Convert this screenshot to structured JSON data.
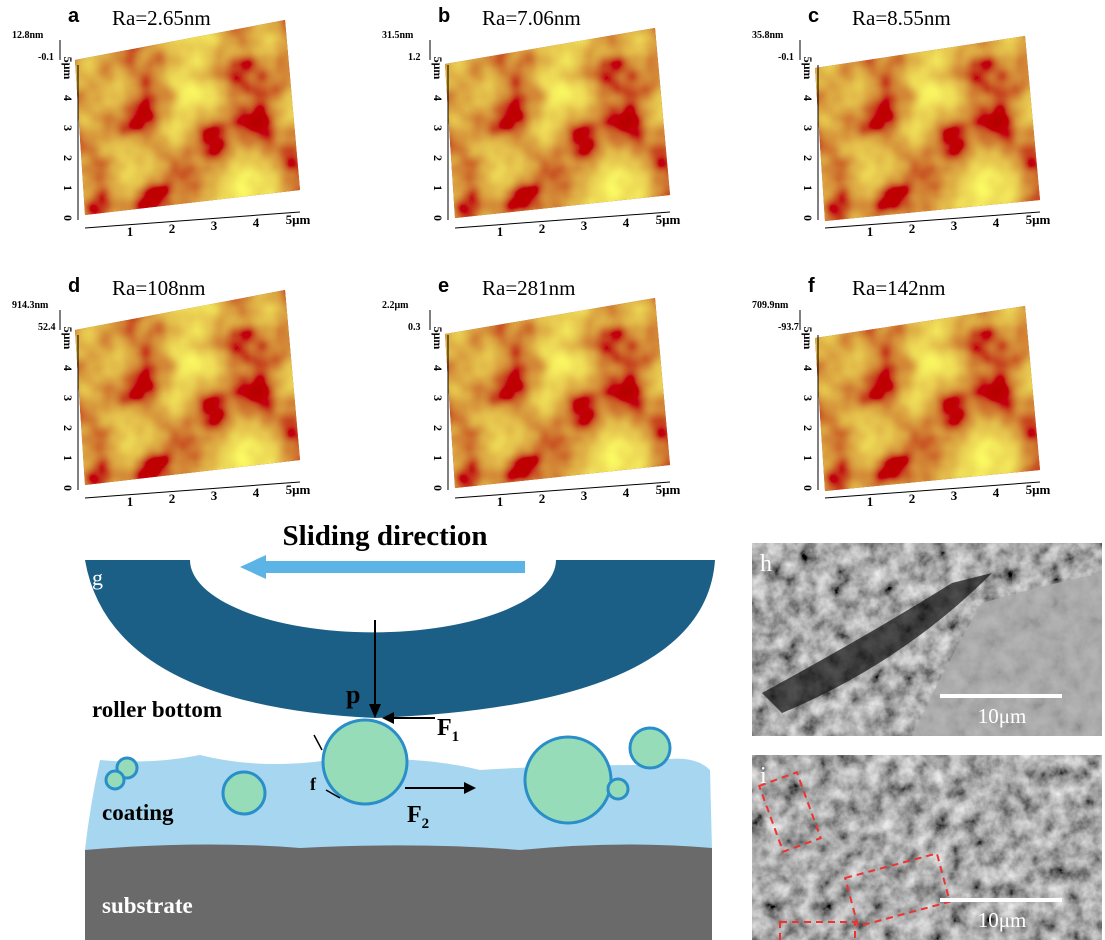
{
  "afm_panels": [
    {
      "letter": "a",
      "roughness": "Ra=2.65nm",
      "z_max": "12.8nm",
      "z_min": "-0.1",
      "x_ticks": [
        "1",
        "2",
        "3",
        "4",
        "5μm"
      ],
      "y_ticks": [
        "0",
        "1",
        "2",
        "3",
        "4",
        "5μm"
      ]
    },
    {
      "letter": "b",
      "roughness": "Ra=7.06nm",
      "z_max": "31.5nm",
      "z_min": "1.2",
      "x_ticks": [
        "1",
        "2",
        "3",
        "4",
        "5μm"
      ],
      "y_ticks": [
        "0",
        "1",
        "2",
        "3",
        "4",
        "5μm"
      ]
    },
    {
      "letter": "c",
      "roughness": "Ra=8.55nm",
      "z_max": "35.8nm",
      "z_min": "-0.1",
      "x_ticks": [
        "1",
        "2",
        "3",
        "4",
        "5μm"
      ],
      "y_ticks": [
        "0",
        "1",
        "2",
        "3",
        "4",
        "5μm"
      ]
    },
    {
      "letter": "d",
      "roughness": "Ra=108nm",
      "z_max": "914.3nm",
      "z_min": "52.4",
      "x_ticks": [
        "1",
        "2",
        "3",
        "4",
        "5μm"
      ],
      "y_ticks": [
        "0",
        "1",
        "2",
        "3",
        "4",
        "5μm"
      ]
    },
    {
      "letter": "e",
      "roughness": "Ra=281nm",
      "z_max": "2.2μm",
      "z_min": "0.3",
      "x_ticks": [
        "1",
        "2",
        "3",
        "4",
        "5μm"
      ],
      "y_ticks": [
        "0",
        "1",
        "2",
        "3",
        "4",
        "5μm"
      ]
    },
    {
      "letter": "f",
      "roughness": "Ra=142nm",
      "z_max": "709.9nm",
      "z_min": "-93.7",
      "x_ticks": [
        "1",
        "2",
        "3",
        "4",
        "5μm"
      ],
      "y_ticks": [
        "0",
        "1",
        "2",
        "3",
        "4",
        "5μm"
      ]
    }
  ],
  "schematic": {
    "letter": "g",
    "sliding_direction": "Sliding direction",
    "roller_label": "roller bottom",
    "coating_label": "coating",
    "substrate_label": "substrate",
    "force_p": "p",
    "force_f1": "F",
    "force_f1_sub": "1",
    "force_f2": "F",
    "force_f2_sub": "2",
    "friction": "f"
  },
  "sem_panels": [
    {
      "letter": "h",
      "scale_bar": "10μm"
    },
    {
      "letter": "i",
      "scale_bar": "10μm"
    }
  ]
}
